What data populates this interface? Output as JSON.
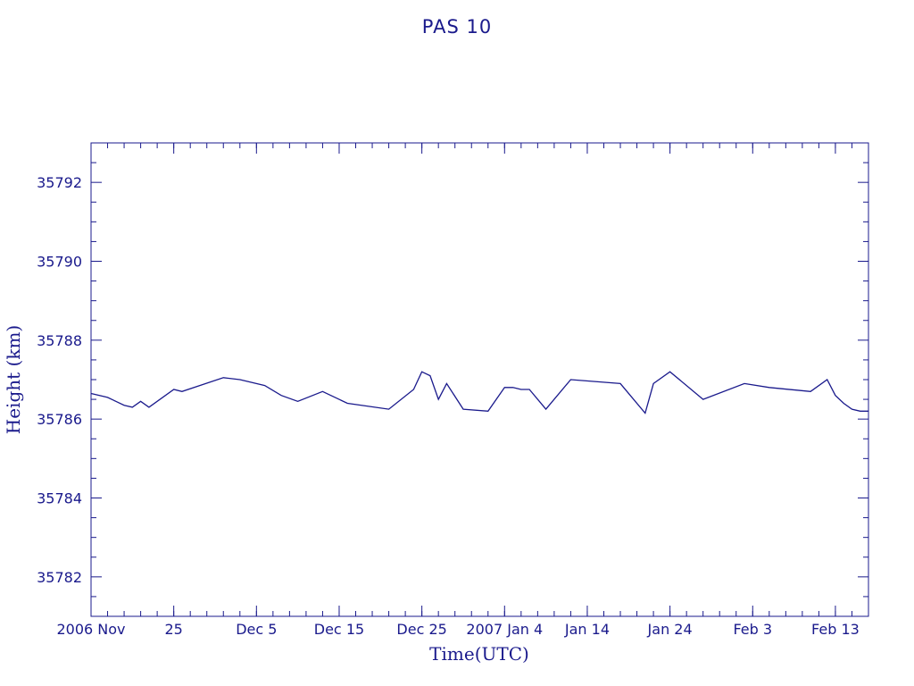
{
  "chart_data": {
    "type": "line",
    "title": "PAS 10",
    "xlabel": "Time(UTC)",
    "ylabel": "Height (km)",
    "ylim": [
      35781,
      35793
    ],
    "yticks": [
      35782,
      35784,
      35786,
      35788,
      35790,
      35792
    ],
    "xlim": [
      "2006-11-15",
      "2007-02-17"
    ],
    "xticks": [
      {
        "date": "2006-11-15",
        "label": "2006 Nov"
      },
      {
        "date": "2006-11-25",
        "label": "25"
      },
      {
        "date": "2006-12-05",
        "label": "Dec  5"
      },
      {
        "date": "2006-12-15",
        "label": "Dec 15"
      },
      {
        "date": "2006-12-25",
        "label": "Dec 25"
      },
      {
        "date": "2007-01-04",
        "label": "2007 Jan  4"
      },
      {
        "date": "2007-01-14",
        "label": "Jan 14"
      },
      {
        "date": "2007-01-24",
        "label": "Jan 24"
      },
      {
        "date": "2007-02-03",
        "label": "Feb  3"
      },
      {
        "date": "2007-02-13",
        "label": "Feb 13"
      }
    ],
    "colors": {
      "line": "#1a1a8c",
      "axis": "#1a1a8c",
      "background": "#ffffff"
    },
    "series": [
      {
        "x": [
          "2006-11-15",
          "2006-11-17",
          "2006-11-18",
          "2006-11-19",
          "2006-11-20",
          "2006-11-21",
          "2006-11-22",
          "2006-11-25",
          "2006-11-26",
          "2006-12-01",
          "2006-12-03",
          "2006-12-06",
          "2006-12-08",
          "2006-12-10",
          "2006-12-13",
          "2006-12-16",
          "2006-12-21",
          "2006-12-24",
          "2006-12-25",
          "2006-12-26",
          "2006-12-27",
          "2006-12-28",
          "2006-12-30",
          "2007-01-02",
          "2007-01-04",
          "2007-01-05",
          "2007-01-06",
          "2007-01-07",
          "2007-01-09",
          "2007-01-12",
          "2007-01-18",
          "2007-01-21",
          "2007-01-22",
          "2007-01-24",
          "2007-01-28",
          "2007-02-02",
          "2007-02-05",
          "2007-02-10",
          "2007-02-12",
          "2007-02-13",
          "2007-02-14",
          "2007-02-15",
          "2007-02-16",
          "2007-02-17"
        ],
        "y": [
          35786.65,
          35786.55,
          35786.45,
          35786.35,
          35786.3,
          35786.45,
          35786.3,
          35786.75,
          35786.7,
          35787.05,
          35787.0,
          35786.85,
          35786.6,
          35786.45,
          35786.7,
          35786.4,
          35786.25,
          35786.75,
          35787.2,
          35787.1,
          35786.5,
          35786.9,
          35786.25,
          35786.2,
          35786.8,
          35786.8,
          35786.75,
          35786.75,
          35786.25,
          35787.0,
          35786.9,
          35786.15,
          35786.9,
          35787.2,
          35786.5,
          35786.9,
          35786.8,
          35786.7,
          35787.0,
          35786.6,
          35786.4,
          35786.25,
          35786.2,
          35786.2
        ],
        "_note": "x/y sampled traced polyline"
      }
    ]
  }
}
